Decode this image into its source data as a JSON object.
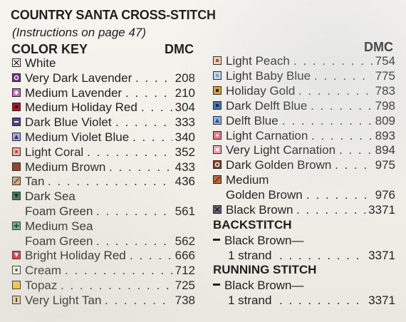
{
  "title": "COUNTRY SANTA CROSS-STITCH",
  "subtitle": "(Instructions on page 47)",
  "left": {
    "heading": "COLOR KEY",
    "dmc_heading": "DMC",
    "items": [
      {
        "lines": [
          "White"
        ],
        "dmc": "",
        "swatch": {
          "bg": "#ffffff",
          "mark": "x",
          "mark_color": "#222222"
        }
      },
      {
        "lines": [
          "Very Dark Lavender"
        ],
        "dmc": "208",
        "swatch": {
          "bg": "#7a2f86",
          "mark": "circle",
          "mark_color": "#ffffff"
        }
      },
      {
        "lines": [
          "Medium Lavender"
        ],
        "dmc": "210",
        "swatch": {
          "bg": "#c270c0",
          "mark": "diamond",
          "mark_color": "#ffffff"
        }
      },
      {
        "lines": [
          "Medium Holiday Red"
        ],
        "dmc": "304",
        "swatch": {
          "bg": "#b0162a",
          "mark": "square",
          "mark_color": "#2a0000"
        }
      },
      {
        "lines": [
          "Dark Blue Violet"
        ],
        "dmc": "333",
        "swatch": {
          "bg": "#4b3e8c",
          "mark": "hbar",
          "mark_color": "#ffffff"
        }
      },
      {
        "lines": [
          "Medium Violet Blue"
        ],
        "dmc": "340",
        "swatch": {
          "bg": "#a2a6de",
          "mark": "triangle",
          "mark_color": "#2b2b6a"
        }
      },
      {
        "lines": [
          "Light Coral"
        ],
        "dmc": "352",
        "swatch": {
          "bg": "#f2a7a0",
          "mark": "dot",
          "mark_color": "#b0163a"
        }
      },
      {
        "lines": [
          "Medium Brown"
        ],
        "dmc": "433",
        "swatch": {
          "bg": "#8a3a24",
          "mark": "none",
          "mark_color": "#000000"
        }
      },
      {
        "lines": [
          "Tan"
        ],
        "dmc": "436",
        "swatch": {
          "bg": "#d6a878",
          "mark": "slash",
          "mark_color": "#333333"
        }
      },
      {
        "lines": [
          "Dark Sea",
          "Foam Green"
        ],
        "dmc": "561",
        "swatch": {
          "bg": "#2f7a4a",
          "mark": "triangle-down",
          "mark_color": "#111111"
        }
      },
      {
        "lines": [
          "Medium Sea",
          "Foam Green"
        ],
        "dmc": "562",
        "swatch": {
          "bg": "#5bb07a",
          "mark": "plus",
          "mark_color": "#111111"
        }
      },
      {
        "lines": [
          "Bright Holiday Red"
        ],
        "dmc": "666",
        "swatch": {
          "bg": "#e02636",
          "mark": "triangle-down",
          "mark_color": "#ffffff"
        }
      },
      {
        "lines": [
          "Cream"
        ],
        "dmc": "712",
        "swatch": {
          "bg": "#faf5e2",
          "mark": "dot",
          "mark_color": "#222222"
        }
      },
      {
        "lines": [
          "Topaz"
        ],
        "dmc": "725",
        "swatch": {
          "bg": "#f4c430",
          "mark": "none",
          "mark_color": "#000000"
        }
      },
      {
        "lines": [
          "Very Light Tan"
        ],
        "dmc": "738",
        "swatch": {
          "bg": "#ecd0a3",
          "mark": "vbar",
          "mark_color": "#222222"
        }
      }
    ]
  },
  "right": {
    "dmc_heading": "DMC",
    "items": [
      {
        "lines": [
          "Light Peach"
        ],
        "dmc": "754",
        "swatch": {
          "bg": "#f7cfb4",
          "mark": "square",
          "mark_color": "#8a4a2a"
        }
      },
      {
        "lines": [
          "Light Baby Blue"
        ],
        "dmc": "775",
        "swatch": {
          "bg": "#bdd8ee",
          "mark": "square",
          "mark_color": "#6fa0d2"
        }
      },
      {
        "lines": [
          "Holiday Gold"
        ],
        "dmc": "783",
        "swatch": {
          "bg": "#d9a12c",
          "mark": "square",
          "mark_color": "#111111"
        }
      },
      {
        "lines": [
          "Dark Delft Blue"
        ],
        "dmc": "798",
        "swatch": {
          "bg": "#3f6cb0",
          "mark": "square",
          "mark_color": "#0b1a4a"
        }
      },
      {
        "lines": [
          "Delft Blue"
        ],
        "dmc": "809",
        "swatch": {
          "bg": "#8fb0e0",
          "mark": "triangle",
          "mark_color": "#1f3f85"
        }
      },
      {
        "lines": [
          "Light Carnation"
        ],
        "dmc": "893",
        "swatch": {
          "bg": "#f36f86",
          "mark": "dot",
          "mark_color": "#ffffff"
        }
      },
      {
        "lines": [
          "Very Light Carnation"
        ],
        "dmc": "894",
        "swatch": {
          "bg": "#ff9fb2",
          "mark": "square",
          "mark_color": "#ffffff"
        }
      },
      {
        "lines": [
          "Dark Golden Brown"
        ],
        "dmc": "975",
        "swatch": {
          "bg": "#8a3e1a",
          "mark": "circle",
          "mark_color": "#ffffff"
        }
      },
      {
        "lines": [
          "Medium",
          "Golden Brown"
        ],
        "dmc": "976",
        "swatch": {
          "bg": "#c4682c",
          "mark": "slash",
          "mark_color": "#4a2008"
        }
      },
      {
        "lines": [
          "Black Brown"
        ],
        "dmc": "3371",
        "swatch": {
          "bg": "#6a6a84",
          "mark": "x",
          "mark_color": "#1a1a1a"
        }
      }
    ],
    "backstitch": {
      "heading": "BACKSTITCH",
      "line1": "Black Brown—",
      "line2": "1 strand",
      "dmc": "3371"
    },
    "running_stitch": {
      "heading": "RUNNING STITCH",
      "line1": "Black Brown—",
      "line2": "1 strand",
      "dmc": "3371"
    }
  }
}
